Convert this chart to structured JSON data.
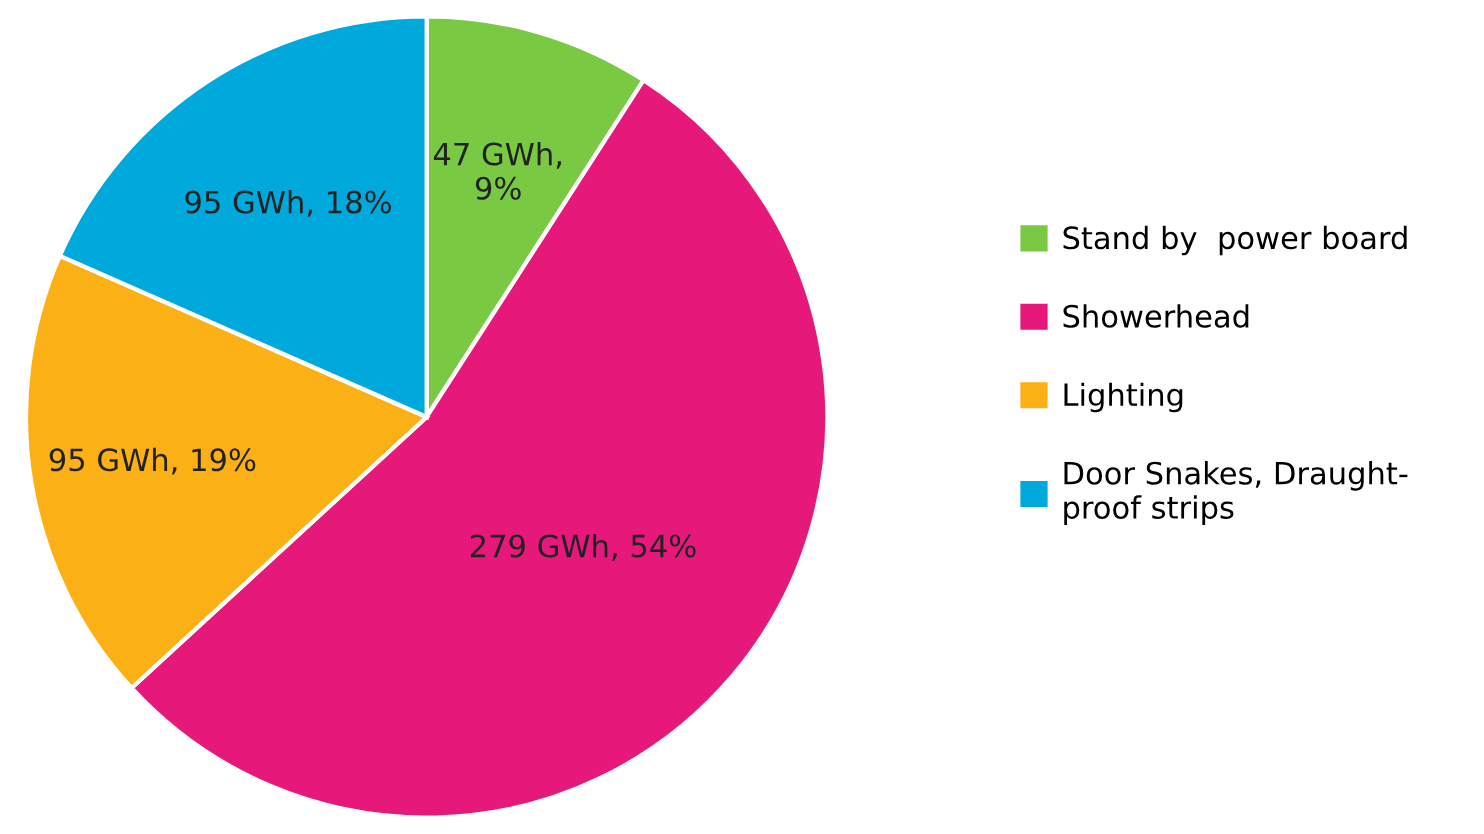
{
  "chart_data": {
    "type": "pie",
    "categories": [
      "Stand by  power board",
      "Showerhead",
      "Lighting",
      "Door Snakes, Draught-\nproof strips"
    ],
    "values": [
      47,
      279,
      95,
      95
    ],
    "colors": [
      "#7ac943",
      "#e6197a",
      "#fbb116",
      "#00a9dc"
    ],
    "value_labels": [
      "47 GWh,\n9%",
      "279 GWh, 54%",
      "95 GWh, 19%",
      "95 GWh, 18%"
    ],
    "legend": "right"
  }
}
